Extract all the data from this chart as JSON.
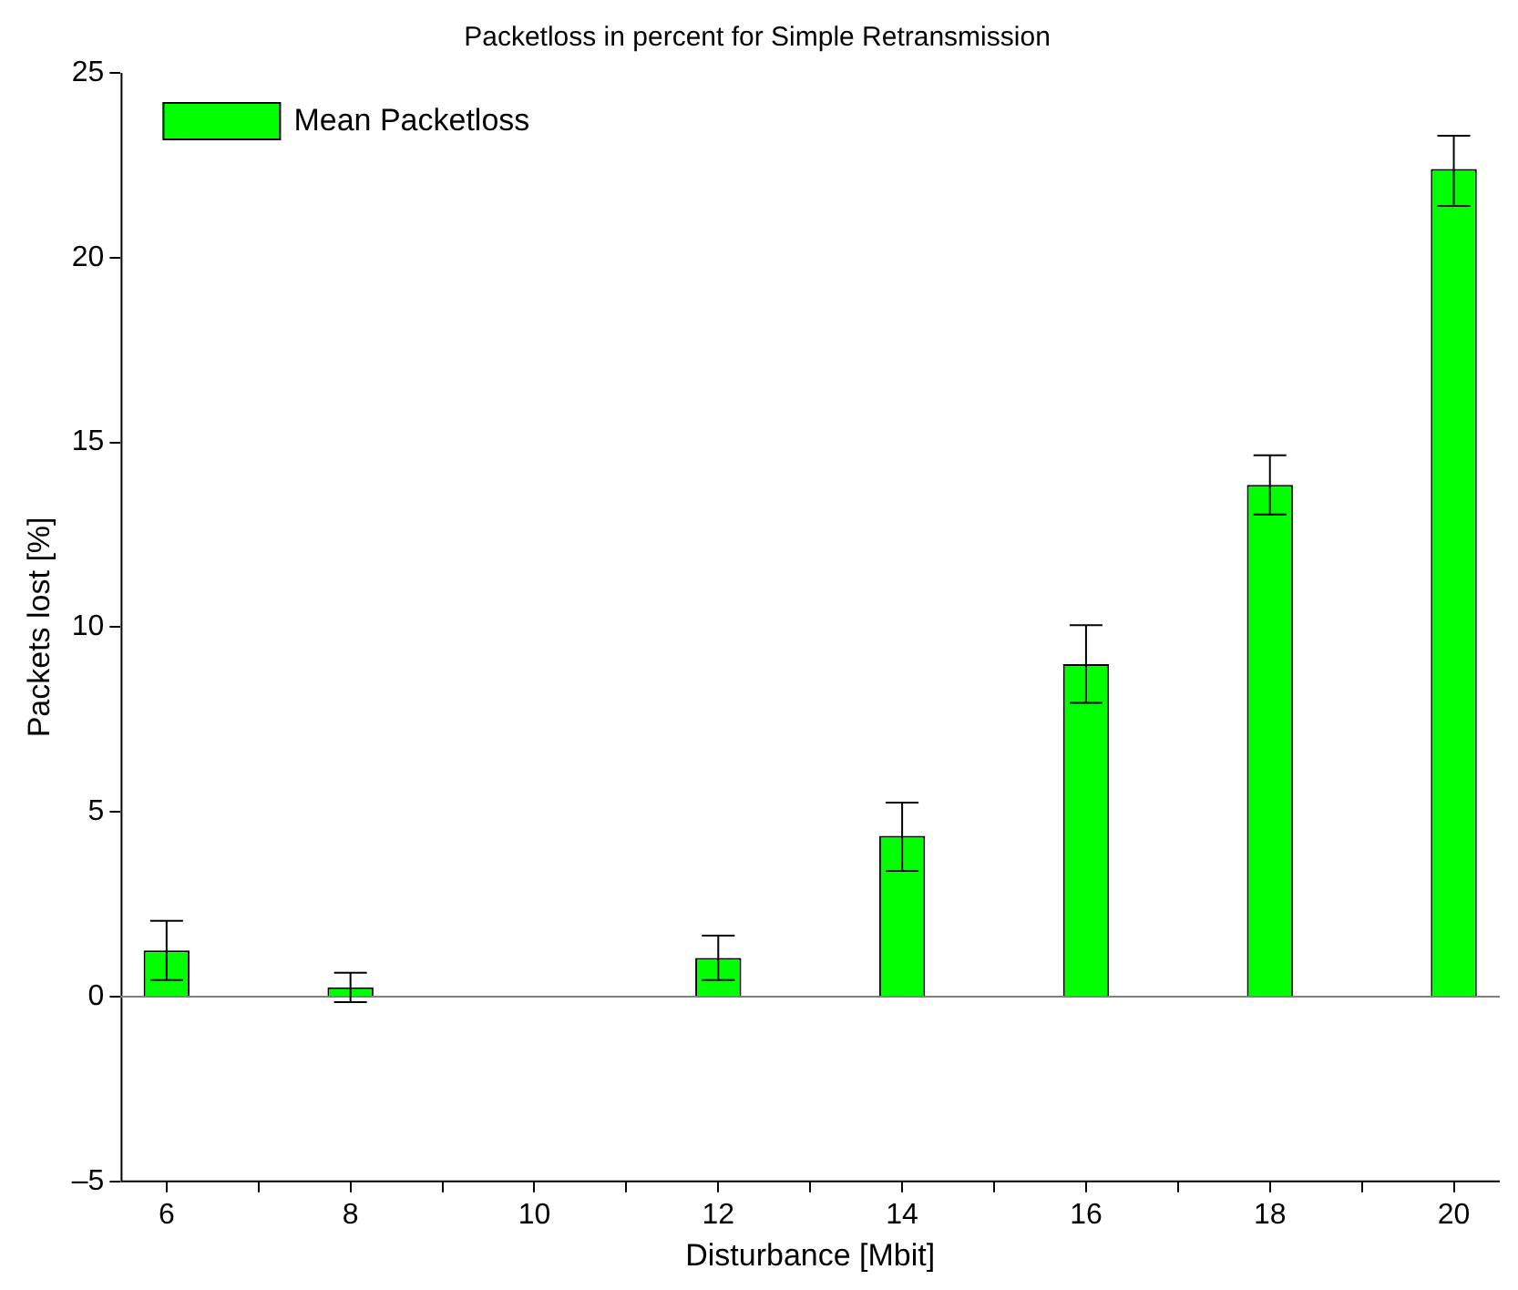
{
  "chart_data": {
    "type": "bar",
    "title": "Packetloss in percent for Simple Retransmission",
    "xlabel": "Disturbance [Mbit]",
    "ylabel": "Packets lost [%]",
    "categories": [
      "6",
      null,
      "8",
      null,
      "10",
      null,
      "12",
      null,
      "14",
      null,
      "16",
      null,
      "18",
      null,
      "20"
    ],
    "series": [
      {
        "name": "Mean Packetloss",
        "color": "#00ff00",
        "values": [
          1.25,
          0,
          0.25,
          0,
          0,
          0,
          1.05,
          0,
          4.35,
          0,
          9.0,
          0,
          13.85,
          0,
          22.4
        ],
        "errors": [
          [
            0.45,
            2.05
          ],
          null,
          [
            -0.15,
            0.65
          ],
          null,
          null,
          null,
          [
            0.45,
            1.65
          ],
          null,
          [
            3.4,
            5.25
          ],
          null,
          [
            7.95,
            10.05
          ],
          null,
          [
            13.05,
            14.65
          ],
          null,
          [
            21.4,
            23.3
          ]
        ]
      }
    ],
    "ylim": [
      -5,
      25
    ],
    "yticks": [
      {
        "value": -5,
        "label": "–5"
      },
      0,
      5,
      10,
      15,
      20,
      25
    ],
    "ref_lines": [
      {
        "axis": "y",
        "value": 0,
        "color": "#808080"
      }
    ],
    "legend": "top left",
    "grid": false
  }
}
